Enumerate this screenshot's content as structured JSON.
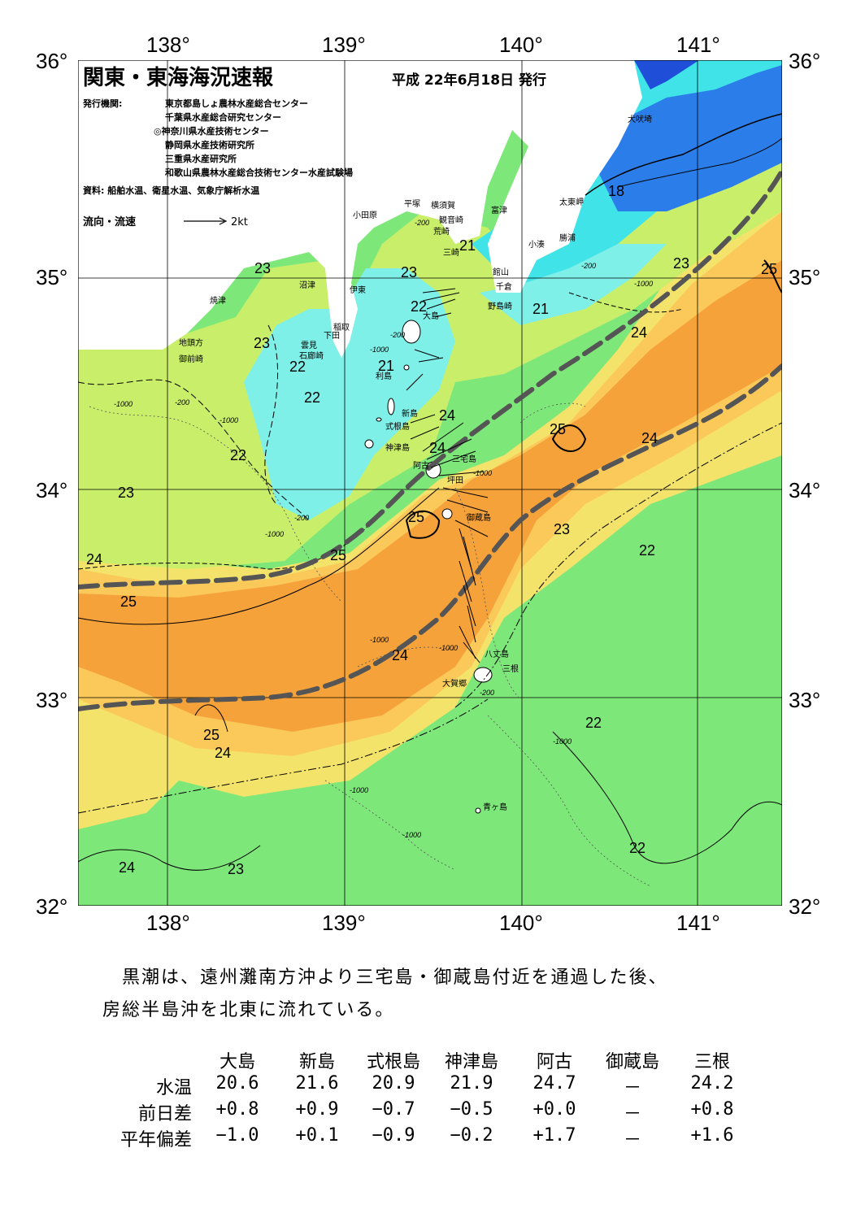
{
  "axes": {
    "lon_labels": [
      "138°",
      "139°",
      "140°",
      "141°"
    ],
    "lat_labels": [
      "36°",
      "35°",
      "34°",
      "33°",
      "32°"
    ]
  },
  "header": {
    "title": "関東・東海海況速報",
    "date": "平成 22年6月18日 発行",
    "publisher_label": "発行機関:",
    "publishers": [
      "東京都島しょ農林水産総合センター",
      "千葉県水産総合研究センター",
      "◎神奈川県水産技術センター",
      "静岡県水産技術研究所",
      "三重県水産研究所",
      "和歌山県農林水産総合技術センター水産試験場"
    ],
    "sources": "資料: 船舶水温、衛星水温、気象庁解析水温",
    "legend_label": "流向・流速",
    "legend_scale": "2kt"
  },
  "places": {
    "inubozaki": "犬吠埼",
    "taitozaki": "太東岬",
    "katsuura": "勝浦",
    "kominato": "小湊",
    "futtsu": "富津",
    "tateyama": "館山",
    "chikura": "千倉",
    "nojimazaki": "野島崎",
    "yokosuka": "横須賀",
    "kannonzaki": "観音崎",
    "arasaki": "荒崎",
    "misaki": "三崎",
    "hiratsuka": "平塚",
    "odawara": "小田原",
    "numazu": "沼津",
    "ito": "伊東",
    "yaizu": "焼津",
    "inatori": "稲取",
    "shimoda": "下田",
    "kumomi": "雲見",
    "irozaki": "石廊崎",
    "jitokata": "地頭方",
    "omaezaki": "御前崎",
    "oshima": "大島",
    "toshima": "利島",
    "niijima": "新島",
    "shikinejima": "式根島",
    "kozushima": "神津島",
    "miyakejima": "三宅島",
    "ako": "阿古",
    "tsubota": "坪田",
    "mikurajima": "御蔵島",
    "hachijojima": "八丈島",
    "mitsune": "三根",
    "okago": "大賀郷",
    "aogashima": "青ヶ島"
  },
  "temperature_labels": [
    "18",
    "21",
    "21",
    "21",
    "22",
    "22",
    "22",
    "22",
    "22",
    "22",
    "22",
    "23",
    "23",
    "23",
    "23",
    "23",
    "23",
    "23",
    "24",
    "24",
    "24",
    "24",
    "24",
    "24",
    "24",
    "24",
    "25",
    "25",
    "25",
    "25",
    "25",
    "25"
  ],
  "depth_labels": [
    "-200",
    "-1000"
  ],
  "summary": {
    "line1": "黒潮は、遠州灘南方沖より三宅島・御蔵島付近を通過した後、",
    "line2": "房総半島沖を北東に流れている。"
  },
  "table": {
    "columns": [
      "大島",
      "新島",
      "式根島",
      "神津島",
      "阿古",
      "御蔵島",
      "三根"
    ],
    "rows": [
      {
        "label": "水温",
        "values": [
          "20.6",
          "21.6",
          "20.9",
          "21.9",
          "24.7",
          "－",
          "24.2"
        ]
      },
      {
        "label": "前日差",
        "values": [
          "+0.8",
          "+0.9",
          "−0.7",
          "−0.5",
          "+0.0",
          "－",
          "+0.8"
        ]
      },
      {
        "label": "平年偏差",
        "values": [
          "−1.0",
          "+0.1",
          "−0.9",
          "−0.2",
          "+1.7",
          "－",
          "+1.6"
        ]
      }
    ]
  },
  "colors": {
    "kuroshio_core": "#f5a23a",
    "warm": "#fbc95a",
    "mid": "#f4e36a",
    "green_light": "#c9ef6a",
    "green": "#7ee77a",
    "cyan": "#3fe3e8",
    "aqua": "#7ff0e8",
    "blue": "#2b7de9",
    "land": "#ffffff",
    "kuroshio_axis": "#555555"
  }
}
